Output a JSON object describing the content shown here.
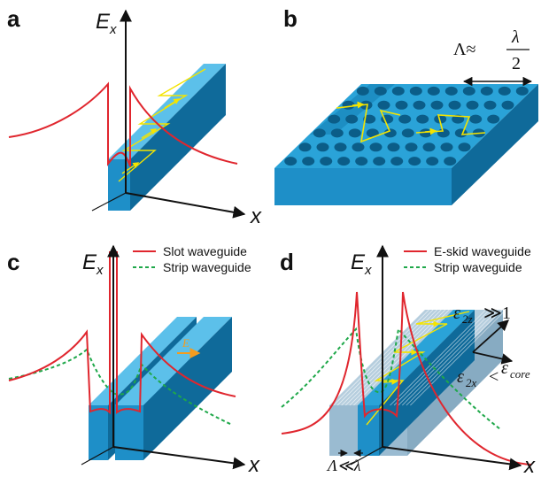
{
  "panels": {
    "a": {
      "label": "a",
      "y_axis": "E",
      "y_axis_sub": "x",
      "x_axis": "x"
    },
    "b": {
      "label": "b",
      "period_symbol": "Λ≈",
      "fraction_num": "λ",
      "fraction_den": "2"
    },
    "c": {
      "label": "c",
      "y_axis": "E",
      "y_axis_sub": "x",
      "x_axis": "x",
      "field_label": "E",
      "legend": [
        "Slot waveguide",
        "Strip waveguide"
      ]
    },
    "d": {
      "label": "d",
      "y_axis": "E",
      "y_axis_sub": "x",
      "x_axis": "x",
      "legend": [
        "E-skid waveguide",
        "Strip waveguide"
      ],
      "eps_z": "ε",
      "eps_z_sub": "2z",
      "eps_z_rel": "≫1",
      "eps_x": "ε",
      "eps_x_sub": "2x",
      "eps_x_rel": "<",
      "eps_core": "ε",
      "eps_core_sub": "core",
      "period": "Λ≪λ"
    }
  },
  "colors": {
    "waveguide": "#1e8fc8",
    "waveguide_dark": "#0f6a9a",
    "field_red": "#e0262e",
    "strip_green": "#1fa84a",
    "ray_yellow": "#f4e400",
    "cladding": "#8fb4cc"
  }
}
